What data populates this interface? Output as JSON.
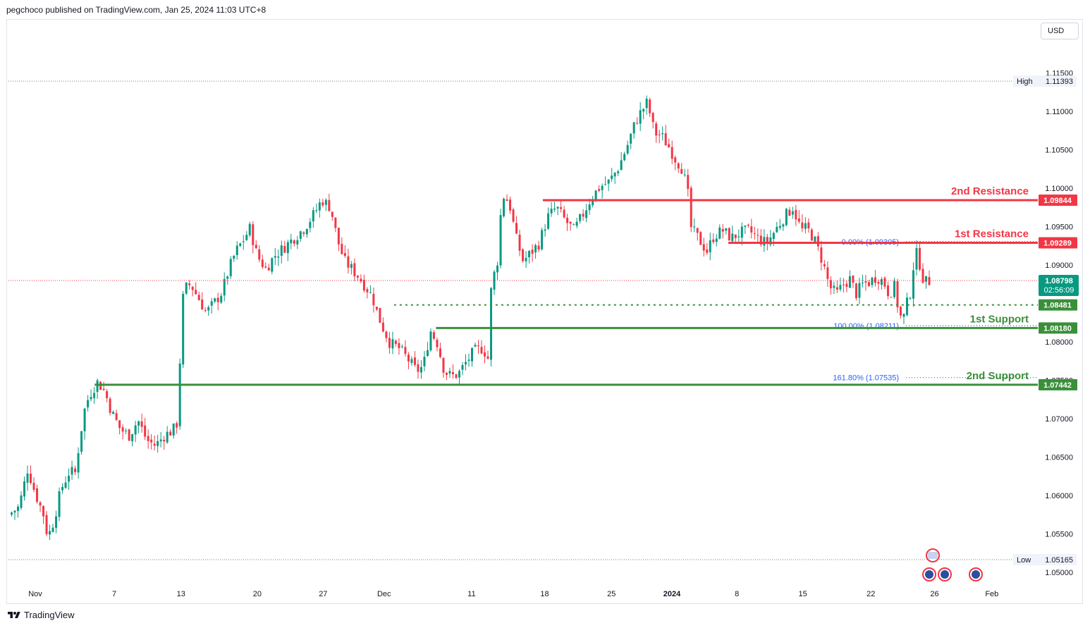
{
  "header": {
    "publisher_text": "pegchoco published on TradingView.com, Jan 25, 2024 11:03 UTC+8"
  },
  "currency_button": {
    "label": "USD"
  },
  "footer": {
    "brand": "TradingView"
  },
  "colors": {
    "bull": "#089981",
    "bear": "#f23645",
    "resistance": "#f23645",
    "support": "#3a8f3a",
    "fib": "#2962ff"
  },
  "chart_data": {
    "type": "candlestick",
    "symbol_currency": "USD",
    "ylim": [
      1.0483,
      1.1187
    ],
    "x_ticks": [
      {
        "label": "Nov",
        "t": 0.0
      },
      {
        "label": "7",
        "t": 0.0875
      },
      {
        "label": "13",
        "t": 0.1615
      },
      {
        "label": "20",
        "t": 0.246
      },
      {
        "label": "27",
        "t": 0.319
      },
      {
        "label": "Dec",
        "t": 0.3865
      },
      {
        "label": "11",
        "t": 0.4835
      },
      {
        "label": "18",
        "t": 0.5645
      },
      {
        "label": "25",
        "t": 0.6385
      },
      {
        "label": "2024",
        "t": 0.7055
      },
      {
        "label": "8",
        "t": 0.7775
      },
      {
        "label": "15",
        "t": 0.8505
      },
      {
        "label": "22",
        "t": 0.926
      },
      {
        "label": "26",
        "t": 0.9965
      },
      {
        "label": "Feb",
        "t": 1.06
      }
    ],
    "y_ticks": [
      "1.11500",
      "1.11000",
      "1.10500",
      "1.10000",
      "1.09500",
      "1.09000",
      "1.08000",
      "1.07500",
      "1.07000",
      "1.06500",
      "1.06000",
      "1.05500",
      "1.05000"
    ],
    "y_tick_values": [
      1.115,
      1.11,
      1.105,
      1.1,
      1.095,
      1.09,
      1.08,
      1.075,
      1.07,
      1.065,
      1.06,
      1.055,
      1.05
    ],
    "price_path": [
      [
        0.0,
        1.0575
      ],
      [
        0.012,
        1.0585
      ],
      [
        0.022,
        1.0635
      ],
      [
        0.03,
        1.0605
      ],
      [
        0.04,
        1.0575
      ],
      [
        0.045,
        1.0545
      ],
      [
        0.052,
        1.0568
      ],
      [
        0.06,
        1.0608
      ],
      [
        0.07,
        1.0632
      ],
      [
        0.076,
        1.0628
      ],
      [
        0.082,
        1.0678
      ],
      [
        0.088,
        1.0718
      ],
      [
        0.095,
        1.0736
      ],
      [
        0.102,
        1.0748
      ],
      [
        0.11,
        1.0735
      ],
      [
        0.118,
        1.0708
      ],
      [
        0.128,
        1.0686
      ],
      [
        0.138,
        1.0678
      ],
      [
        0.148,
        1.0698
      ],
      [
        0.158,
        1.0672
      ],
      [
        0.168,
        1.0665
      ],
      [
        0.178,
        1.0678
      ],
      [
        0.188,
        1.0685
      ],
      [
        0.193,
        1.0695
      ],
      [
        0.196,
        1.0778
      ],
      [
        0.2,
        1.0868
      ],
      [
        0.208,
        1.0875
      ],
      [
        0.218,
        1.0855
      ],
      [
        0.226,
        1.0838
      ],
      [
        0.236,
        1.0852
      ],
      [
        0.244,
        1.0865
      ],
      [
        0.252,
        1.0895
      ],
      [
        0.26,
        1.0918
      ],
      [
        0.268,
        1.0932
      ],
      [
        0.276,
        1.0948
      ],
      [
        0.284,
        1.0912
      ],
      [
        0.294,
        1.0895
      ],
      [
        0.304,
        1.0912
      ],
      [
        0.314,
        1.0922
      ],
      [
        0.326,
        1.0935
      ],
      [
        0.338,
        1.0948
      ],
      [
        0.35,
        1.0968
      ],
      [
        0.358,
        1.0985
      ],
      [
        0.368,
        1.0975
      ],
      [
        0.376,
        1.0932
      ],
      [
        0.384,
        1.0905
      ],
      [
        0.392,
        1.0895
      ],
      [
        0.4,
        1.0885
      ],
      [
        0.408,
        1.0872
      ],
      [
        0.416,
        1.0858
      ],
      [
        0.422,
        1.0835
      ],
      [
        0.428,
        1.0818
      ],
      [
        0.436,
        1.0798
      ],
      [
        0.446,
        1.0792
      ],
      [
        0.456,
        1.0778
      ],
      [
        0.466,
        1.0762
      ],
      [
        0.474,
        1.0768
      ],
      [
        0.482,
        1.0815
      ],
      [
        0.49,
        1.0798
      ],
      [
        0.498,
        1.0762
      ],
      [
        0.506,
        1.0755
      ],
      [
        0.514,
        1.0758
      ],
      [
        0.522,
        1.0772
      ],
      [
        0.532,
        1.0788
      ],
      [
        0.542,
        1.0792
      ],
      [
        0.548,
        1.0778
      ],
      [
        0.552,
        1.0882
      ],
      [
        0.558,
        1.0895
      ],
      [
        0.564,
        1.0992
      ],
      [
        0.572,
        1.0982
      ],
      [
        0.58,
        1.0935
      ],
      [
        0.588,
        1.0905
      ],
      [
        0.596,
        1.0915
      ],
      [
        0.606,
        1.0928
      ],
      [
        0.616,
        1.0962
      ],
      [
        0.626,
        1.0975
      ],
      [
        0.636,
        1.0958
      ],
      [
        0.646,
        1.0945
      ],
      [
        0.656,
        1.0965
      ],
      [
        0.666,
        1.0988
      ],
      [
        0.676,
        1.1002
      ],
      [
        0.686,
        1.1008
      ],
      [
        0.696,
        1.1025
      ],
      [
        0.706,
        1.1052
      ],
      [
        0.716,
        1.1085
      ],
      [
        0.722,
        1.1098
      ],
      [
        0.73,
        1.1112
      ],
      [
        0.738,
        1.1072
      ],
      [
        0.746,
        1.1068
      ],
      [
        0.754,
        1.1055
      ],
      [
        0.762,
        1.1038
      ],
      [
        0.77,
        1.1025
      ],
      [
        0.776,
        1.0995
      ],
      [
        0.78,
        1.0948
      ],
      [
        0.788,
        1.0935
      ],
      [
        0.798,
        1.0918
      ],
      [
        0.806,
        1.0938
      ],
      [
        0.816,
        1.0945
      ],
      [
        0.826,
        1.0935
      ],
      [
        0.836,
        1.0942
      ],
      [
        0.846,
        1.0945
      ],
      [
        0.856,
        1.0935
      ],
      [
        0.866,
        1.0928
      ],
      [
        0.876,
        1.0945
      ],
      [
        0.886,
        1.0962
      ],
      [
        0.896,
        1.0975
      ],
      [
        0.906,
        1.0945
      ],
      [
        0.912,
        1.0948
      ],
      [
        0.92,
        1.0935
      ],
      [
        0.93,
        1.0905
      ],
      [
        0.938,
        1.0872
      ],
      [
        0.946,
        1.0862
      ],
      [
        0.954,
        1.0875
      ],
      [
        0.962,
        1.0882
      ],
      [
        0.968,
        1.0862
      ],
      [
        0.976,
        1.0875
      ],
      [
        0.984,
        1.0878
      ],
      [
        0.992,
        1.0885
      ],
      [
        1.0,
        1.0878
      ],
      [
        1.006,
        1.0862
      ],
      [
        1.012,
        1.0872
      ],
      [
        1.018,
        1.0835
      ],
      [
        1.022,
        1.0828
      ],
      [
        1.026,
        1.0848
      ],
      [
        1.03,
        1.0862
      ],
      [
        1.036,
        1.0918
      ],
      [
        1.04,
        1.0908
      ],
      [
        1.044,
        1.0885
      ],
      [
        1.048,
        1.0878
      ],
      [
        1.052,
        1.0879
      ]
    ],
    "levels": [
      {
        "name": "2nd Resistance",
        "price": 1.09844,
        "price_label": "1.09844",
        "kind": "resistance",
        "t_start": 0.6105
      },
      {
        "name": "1st Resistance",
        "price": 1.09289,
        "price_label": "1.09289",
        "kind": "resistance",
        "t_start": 0.8225
      },
      {
        "name": "1st Support",
        "price": 1.0818,
        "price_label": "1.08180",
        "kind": "support",
        "t_start": 0.4885
      },
      {
        "name": "2nd Support",
        "price": 1.07442,
        "price_label": "1.07442",
        "kind": "support",
        "t_start": 0.0985
      }
    ],
    "dotted_support": {
      "price": 1.08481,
      "price_label": "1.08481",
      "t_start": 0.4405
    },
    "fib_levels": [
      {
        "label": "0.00% (1.09305)",
        "price": 1.09305
      },
      {
        "label": "100.00% (1.08211)",
        "price": 1.08211
      },
      {
        "label": "161.80% (1.07535)",
        "price": 1.07535
      }
    ],
    "high": {
      "label": "High",
      "value": "1.11393",
      "price": 1.11393
    },
    "low": {
      "label": "Low",
      "value": "1.05165",
      "price": 1.05165
    },
    "last_price": {
      "value": "1.08798",
      "countdown": "02:56:09",
      "price": 1.08798
    }
  }
}
